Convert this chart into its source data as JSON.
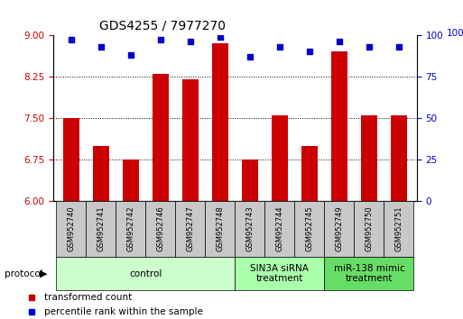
{
  "title": "GDS4255 / 7977270",
  "samples": [
    "GSM952740",
    "GSM952741",
    "GSM952742",
    "GSM952746",
    "GSM952747",
    "GSM952748",
    "GSM952743",
    "GSM952744",
    "GSM952745",
    "GSM952749",
    "GSM952750",
    "GSM952751"
  ],
  "red_values": [
    7.5,
    7.0,
    6.75,
    8.3,
    8.2,
    8.85,
    6.75,
    7.55,
    7.0,
    8.7,
    7.55,
    7.55
  ],
  "blue_values": [
    97,
    93,
    88,
    97,
    96,
    99,
    87,
    93,
    90,
    96,
    93,
    93
  ],
  "ylim_left": [
    6,
    9
  ],
  "ylim_right": [
    0,
    100
  ],
  "yticks_left": [
    6,
    6.75,
    7.5,
    8.25,
    9
  ],
  "yticks_right": [
    0,
    25,
    50,
    75,
    100
  ],
  "groups": [
    {
      "label": "control",
      "start": 0,
      "end": 6,
      "color": "#ccffcc"
    },
    {
      "label": "SIN3A siRNA\ntreatment",
      "start": 6,
      "end": 9,
      "color": "#aaffaa"
    },
    {
      "label": "miR-138 mimic\ntreatment",
      "start": 9,
      "end": 12,
      "color": "#66dd66"
    }
  ],
  "bar_color": "#cc0000",
  "dot_color": "#0000cc",
  "bar_width": 0.55,
  "protocol_label": "protocol",
  "legend_red": "transformed count",
  "legend_blue": "percentile rank within the sample",
  "left_tick_color": "#cc0000",
  "right_tick_color": "#0000cc",
  "title_fontsize": 10,
  "tick_fontsize": 7.5,
  "sample_fontsize": 6.0,
  "group_fontsize": 7.5,
  "legend_fontsize": 7.5
}
